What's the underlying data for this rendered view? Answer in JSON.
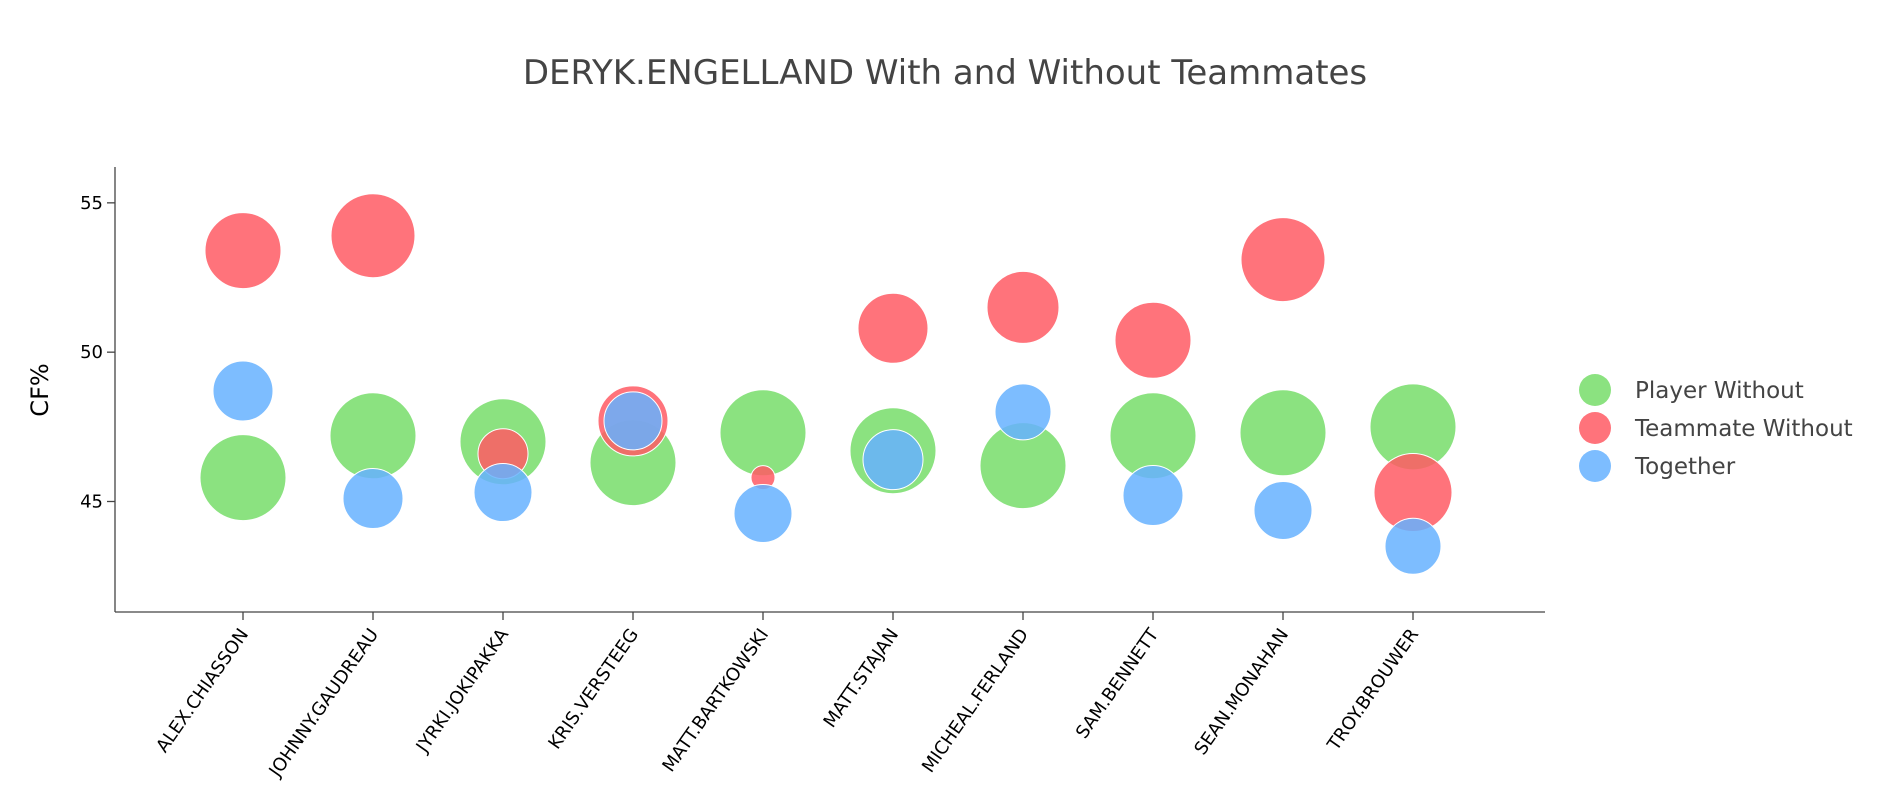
{
  "chart_data": {
    "type": "scatter",
    "title": "DERYK.ENGELLAND With and Without Teammates",
    "xlabel": "",
    "ylabel": "CF%",
    "categories": [
      "ALEX.CHIASSON",
      "JOHNNY.GAUDREAU",
      "JYRKI.JOKIPAKKA",
      "KRIS.VERSTEEG",
      "MATT.BARTKOWSKI",
      "MATT.STAJAN",
      "MICHEAL.FERLAND",
      "SAM.BENNETT",
      "SEAN.MONAHAN",
      "TROY.BROUWER"
    ],
    "ylim": [
      41.3,
      56.2
    ],
    "yticks": [
      45,
      50,
      55
    ],
    "grid": false,
    "legend_position": "right",
    "series": [
      {
        "name": "Player Without",
        "color": "#77dd6a",
        "values": [
          45.8,
          47.2,
          47.0,
          46.3,
          47.3,
          46.7,
          46.2,
          47.2,
          47.3,
          47.5
        ],
        "sizes": [
          43,
          43,
          43,
          43,
          43,
          43,
          43,
          43,
          43,
          43
        ]
      },
      {
        "name": "Teammate Without",
        "color": "#ff5a64",
        "values": [
          53.4,
          53.9,
          46.6,
          47.7,
          45.8,
          50.8,
          51.5,
          50.4,
          53.1,
          45.3
        ],
        "sizes": [
          38,
          42,
          25,
          35,
          12,
          35,
          36,
          38,
          42,
          39
        ]
      },
      {
        "name": "Together",
        "color": "#66b1ff",
        "values": [
          48.7,
          45.1,
          45.3,
          47.7,
          44.6,
          46.4,
          48.0,
          45.2,
          44.7,
          43.5
        ],
        "sizes": [
          30,
          30,
          29,
          29,
          29,
          30,
          28,
          30,
          29,
          28
        ]
      }
    ]
  }
}
